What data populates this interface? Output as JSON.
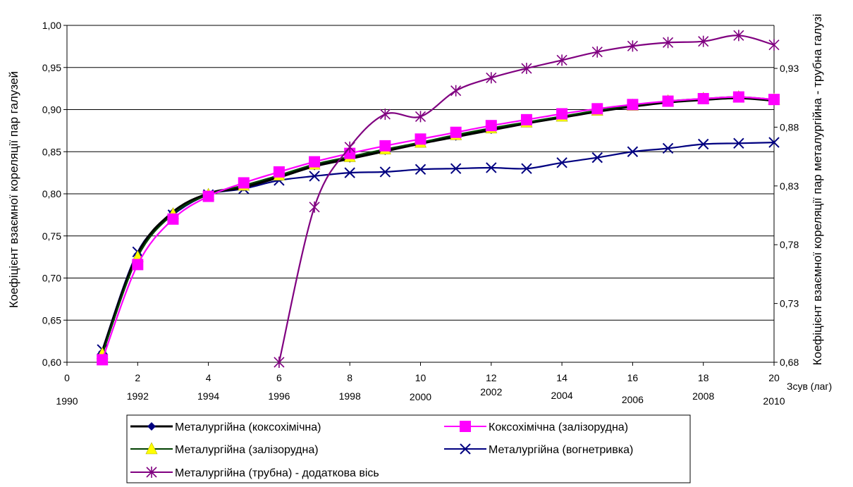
{
  "chart_data": {
    "type": "line",
    "y_label_left": "Коефіцієнт взаємної кореляції пар галузей",
    "y_label_right": "Коефіцієнт взаємної кореляції пар металургійна - трубна галузі",
    "x_axis_label": "Зсув (лаг)",
    "xlim": [
      0,
      20
    ],
    "ylim_left": [
      0.6,
      1.0
    ],
    "ylim_right": [
      0.68,
      0.9666
    ],
    "x_ticks": [
      "0",
      "2",
      "4",
      "6",
      "8",
      "10",
      "12",
      "14",
      "16",
      "18",
      "20"
    ],
    "year_ticks": [
      {
        "x": 0,
        "label": "1990"
      },
      {
        "x": 2,
        "label": "1992"
      },
      {
        "x": 4,
        "label": "1994"
      },
      {
        "x": 6,
        "label": "1996"
      },
      {
        "x": 8,
        "label": "1998"
      },
      {
        "x": 10,
        "label": "2000"
      },
      {
        "x": 12,
        "label": "2002"
      },
      {
        "x": 14,
        "label": "2004"
      },
      {
        "x": 16,
        "label": "2006"
      },
      {
        "x": 18,
        "label": "2008"
      },
      {
        "x": 20,
        "label": "2010"
      }
    ],
    "y_ticks_left": [
      "0,60",
      "0,65",
      "0,70",
      "0,75",
      "0,80",
      "0,85",
      "0,90",
      "0,95",
      "1,00"
    ],
    "y_ticks_right": [
      "0,68",
      "0,73",
      "0,78",
      "0,83",
      "0,88",
      "0,93"
    ],
    "grid": true,
    "legend_position": "bottom",
    "series": [
      {
        "name": "Металургійна (коксохімічна)",
        "axis": "left",
        "color": "#000080",
        "line_color": "#000000",
        "marker": "diamond",
        "x": [
          1,
          2,
          3,
          4,
          5,
          6,
          7,
          8,
          9,
          10,
          11,
          12,
          13,
          14,
          15,
          16,
          17,
          18,
          19,
          20
        ],
        "values": [
          0.612,
          0.728,
          0.778,
          0.8,
          0.808,
          0.82,
          0.833,
          0.842,
          0.851,
          0.86,
          0.868,
          0.876,
          0.884,
          0.891,
          0.898,
          0.904,
          0.909,
          0.912,
          0.914,
          0.911
        ]
      },
      {
        "name": "Коксохімічна (залізорудна)",
        "axis": "left",
        "color": "#FF00FF",
        "line_color": "#FF00FF",
        "marker": "square",
        "x": [
          1,
          2,
          3,
          4,
          5,
          6,
          7,
          8,
          9,
          10,
          11,
          12,
          13,
          14,
          15,
          16,
          17,
          18,
          19,
          20
        ],
        "values": [
          0.603,
          0.716,
          0.77,
          0.797,
          0.813,
          0.826,
          0.838,
          0.848,
          0.857,
          0.865,
          0.873,
          0.881,
          0.888,
          0.895,
          0.901,
          0.906,
          0.91,
          0.913,
          0.915,
          0.912
        ]
      },
      {
        "name": "Металургійна (залізорудна)",
        "axis": "left",
        "color": "#FFFF00",
        "line_color": "#004000",
        "marker": "triangle",
        "x": [
          1,
          2,
          3,
          4,
          5,
          6,
          7,
          8,
          9,
          10,
          11,
          12,
          13,
          14,
          15,
          16,
          17,
          18,
          19,
          20
        ],
        "values": [
          0.61,
          0.725,
          0.776,
          0.799,
          0.81,
          0.822,
          0.835,
          0.844,
          0.853,
          0.861,
          0.87,
          0.878,
          0.885,
          0.892,
          0.899,
          0.905,
          0.91,
          0.913,
          0.915,
          0.912
        ]
      },
      {
        "name": "Металургійна (вогнетривка)",
        "axis": "left",
        "color": "#000080",
        "line_color": "#000080",
        "marker": "x",
        "x": [
          1,
          2,
          3,
          4,
          5,
          6,
          7,
          8,
          9,
          10,
          11,
          12,
          13,
          14,
          15,
          16,
          17,
          18,
          19,
          20
        ],
        "values": [
          0.615,
          0.731,
          0.775,
          0.799,
          0.806,
          0.816,
          0.821,
          0.825,
          0.826,
          0.829,
          0.83,
          0.831,
          0.83,
          0.837,
          0.843,
          0.85,
          0.854,
          0.859,
          0.86,
          0.861
        ]
      },
      {
        "name": "Металургійна (трубна) - додаткова вісь",
        "axis": "right",
        "color": "#800080",
        "line_color": "#800080",
        "marker": "star",
        "x": [
          6,
          7,
          8,
          9,
          10,
          11,
          12,
          13,
          14,
          15,
          16,
          17,
          18,
          19,
          20
        ],
        "values": [
          0.68,
          0.812,
          0.863,
          0.891,
          0.889,
          0.911,
          0.922,
          0.93,
          0.937,
          0.944,
          0.949,
          0.952,
          0.953,
          0.958,
          0.95
        ]
      }
    ]
  }
}
